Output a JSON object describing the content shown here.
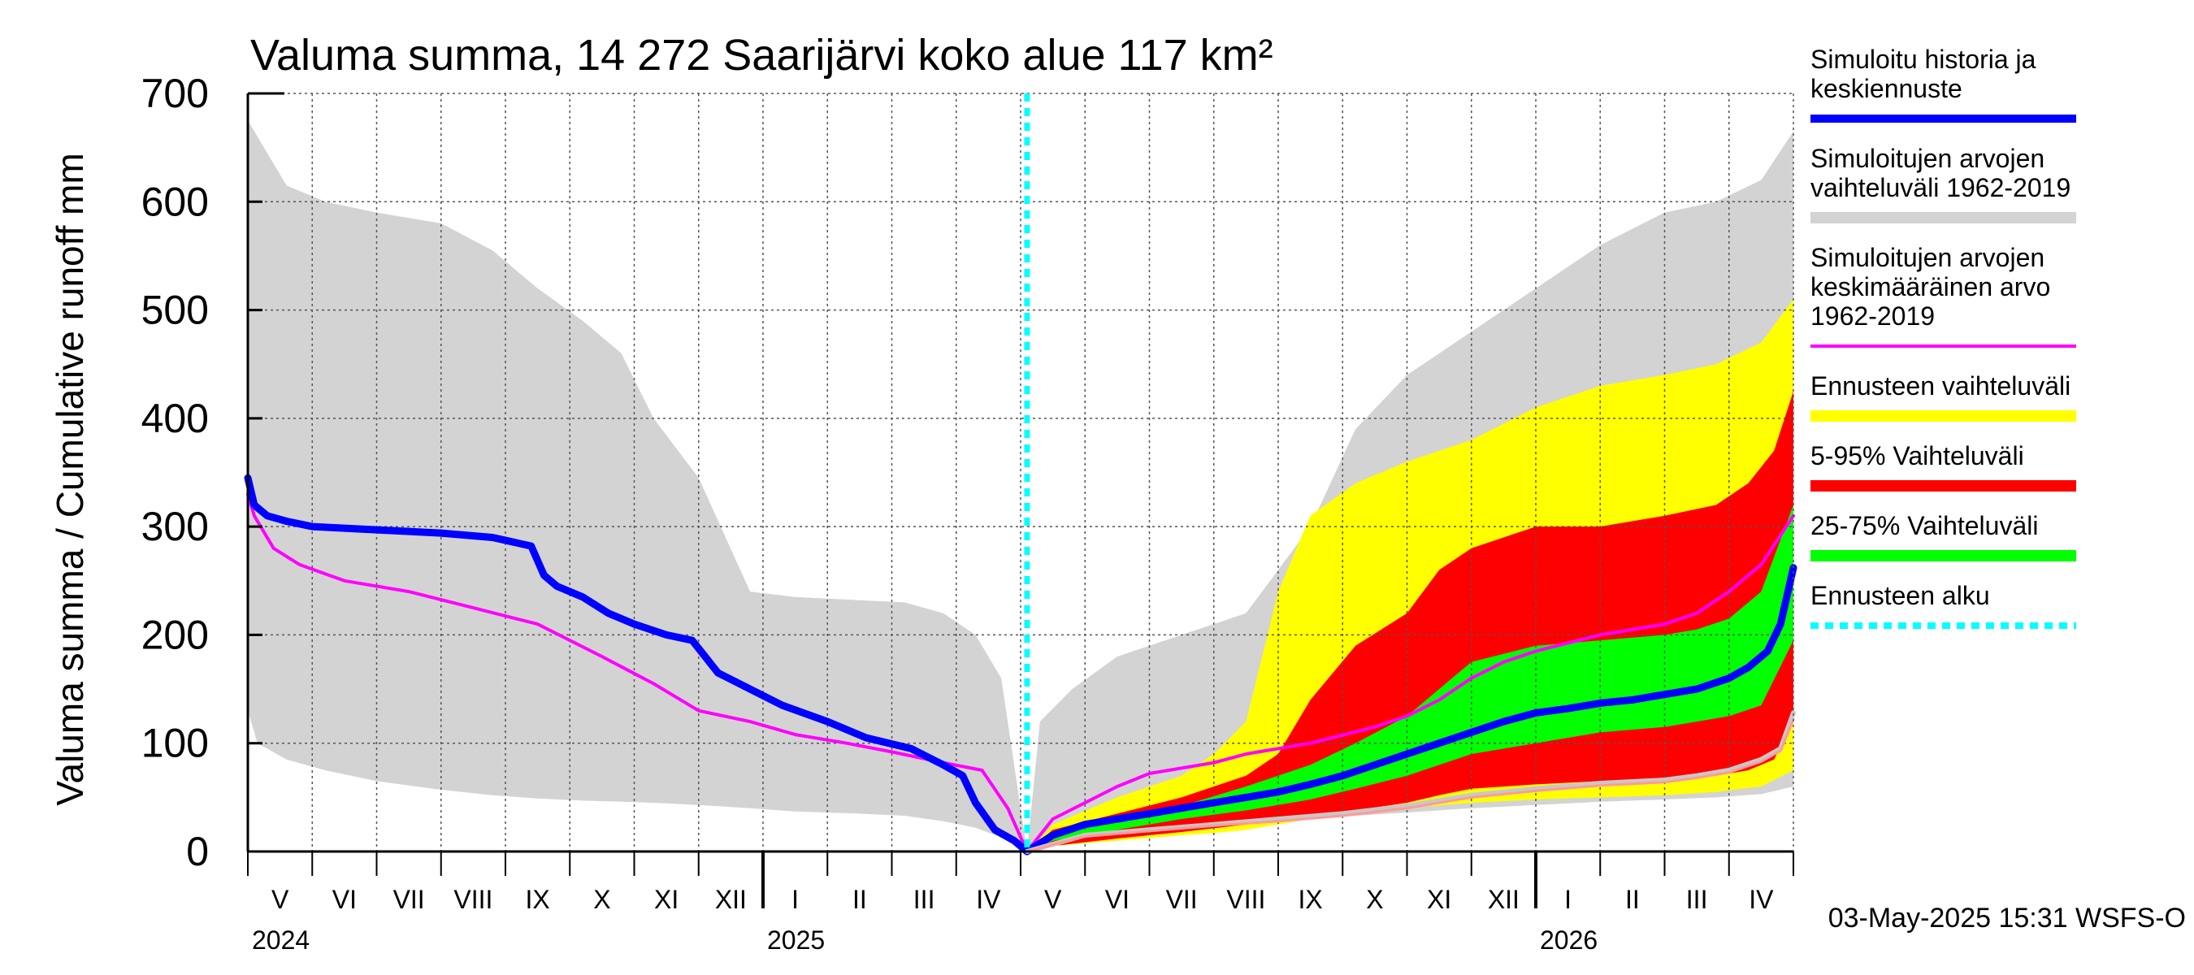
{
  "chart_data": {
    "type": "area",
    "title": "Valuma summa, 14 272 Saarijärvi koko alue 117 km²",
    "ylabel": "Valuma summa / Cumulative runoff    mm",
    "ylim": [
      0,
      700
    ],
    "yticks": [
      0,
      100,
      200,
      300,
      400,
      500,
      600,
      700
    ],
    "x_domain": [
      0,
      24
    ],
    "x_unit": "months since 2024-04-01",
    "grid": true,
    "month_labels": [
      {
        "label": "V",
        "x": 0.5
      },
      {
        "label": "VI",
        "x": 1.5
      },
      {
        "label": "VII",
        "x": 2.5
      },
      {
        "label": "VIII",
        "x": 3.5
      },
      {
        "label": "IX",
        "x": 4.5
      },
      {
        "label": "X",
        "x": 5.5
      },
      {
        "label": "XI",
        "x": 6.5
      },
      {
        "label": "XII",
        "x": 7.5
      },
      {
        "label": "I",
        "x": 8.5
      },
      {
        "label": "II",
        "x": 9.5
      },
      {
        "label": "III",
        "x": 10.5
      },
      {
        "label": "IV",
        "x": 11.5
      },
      {
        "label": "V",
        "x": 12.5
      },
      {
        "label": "VI",
        "x": 13.5
      },
      {
        "label": "VII",
        "x": 14.5
      },
      {
        "label": "VIII",
        "x": 15.5
      },
      {
        "label": "IX",
        "x": 16.5
      },
      {
        "label": "X",
        "x": 17.5
      },
      {
        "label": "XI",
        "x": 18.5
      },
      {
        "label": "XII",
        "x": 19.5
      },
      {
        "label": "I",
        "x": 20.5
      },
      {
        "label": "II",
        "x": 21.5
      },
      {
        "label": "III",
        "x": 22.5
      },
      {
        "label": "IV",
        "x": 23.5
      }
    ],
    "year_labels": [
      {
        "label": "2024",
        "x": 0
      },
      {
        "label": "2025",
        "x": 8
      },
      {
        "label": "2026",
        "x": 20
      }
    ],
    "year_ticks": [
      8,
      20
    ],
    "forecast_start_x": 12.1,
    "legend": [
      {
        "label": [
          "Simuloitu historia ja",
          "keskiennuste"
        ],
        "color": "#0000ff",
        "style": "line"
      },
      {
        "label": [
          "Simuloitujen arvojen",
          "vaihteluväli 1962-2019"
        ],
        "color": "#d3d3d3",
        "style": "band"
      },
      {
        "label": [
          "Simuloitujen arvojen",
          "keskimääräinen arvo",
          "   1962-2019"
        ],
        "color": "#ff00ff",
        "style": "thin"
      },
      {
        "label": [
          "Ennusteen vaihteluväli"
        ],
        "color": "#ffff00",
        "style": "band"
      },
      {
        "label": [
          "5-95% Vaihteluväli"
        ],
        "color": "#ff0000",
        "style": "band"
      },
      {
        "label": [
          "25-75% Vaihteluväli"
        ],
        "color": "#00ff00",
        "style": "band"
      },
      {
        "label": [
          "Ennusteen alku"
        ],
        "color": "#00ffff",
        "style": "dashed"
      }
    ],
    "timestamp": "03-May-2025 15:31 WSFS-O",
    "series": [
      {
        "name": "Simuloitujen arvojen vaihteluväli 1962-2019 (history)",
        "color": "#d3d3d3",
        "x": [
          0,
          0.15,
          0.6,
          1.2,
          2,
          3,
          3.8,
          4.5,
          5.2,
          5.8,
          6.3,
          7,
          7.8,
          8.5,
          9.5,
          10.2,
          10.8,
          11.3,
          11.7,
          12.1
        ],
        "upper": [
          675,
          660,
          615,
          600,
          590,
          580,
          555,
          520,
          490,
          460,
          400,
          345,
          240,
          235,
          232,
          230,
          220,
          200,
          160,
          0
        ],
        "lower": [
          130,
          100,
          85,
          75,
          65,
          57,
          52,
          49,
          47,
          46,
          45,
          43,
          40,
          37,
          35,
          33,
          28,
          22,
          13,
          0
        ]
      },
      {
        "name": "Simuloitujen arvojen vaihteluväli 1962-2019 (forecast year)",
        "color": "#d3d3d3",
        "x": [
          12.1,
          12.3,
          12.8,
          13.5,
          14.5,
          15.5,
          16.5,
          17.2,
          18,
          19,
          20,
          21,
          22,
          22.8,
          23.5,
          24
        ],
        "upper": [
          0,
          120,
          150,
          180,
          200,
          220,
          300,
          390,
          440,
          480,
          520,
          560,
          590,
          600,
          620,
          665
        ],
        "lower": [
          0,
          10,
          15,
          20,
          25,
          27,
          30,
          33,
          36,
          40,
          43,
          46,
          48,
          50,
          53,
          60
        ]
      },
      {
        "name": "Ennusteen vaihteluväli",
        "color": "#ffff00",
        "x": [
          12.1,
          12.5,
          13.5,
          14.5,
          15,
          15.5,
          16,
          16.5,
          17.2,
          18,
          19,
          20,
          21,
          22,
          22.8,
          23.5,
          24
        ],
        "upper": [
          0,
          25,
          50,
          70,
          90,
          120,
          240,
          310,
          340,
          360,
          380,
          410,
          430,
          440,
          450,
          470,
          510
        ],
        "lower": [
          0,
          5,
          10,
          15,
          17,
          20,
          25,
          30,
          35,
          40,
          45,
          48,
          50,
          52,
          55,
          60,
          75
        ]
      },
      {
        "name": "5-95% Vaihteluväli",
        "color": "#ff0000",
        "x": [
          12.1,
          12.5,
          13.5,
          14.5,
          15.5,
          16,
          16.5,
          17.2,
          18,
          18.5,
          19,
          20,
          21,
          22,
          22.8,
          23.3,
          23.7,
          24
        ],
        "upper": [
          0,
          20,
          35,
          50,
          70,
          90,
          140,
          190,
          220,
          260,
          280,
          300,
          300,
          310,
          320,
          340,
          370,
          425
        ],
        "lower": [
          0,
          5,
          12,
          18,
          25,
          28,
          32,
          38,
          45,
          52,
          58,
          62,
          65,
          67,
          70,
          75,
          85,
          120
        ]
      },
      {
        "name": "25-75% Vaihteluväli",
        "color": "#00ff00",
        "x": [
          12.1,
          12.5,
          13.5,
          14.5,
          15.5,
          16.5,
          17.2,
          18,
          18.5,
          19,
          20,
          21,
          22,
          22.5,
          23,
          23.5,
          24
        ],
        "upper": [
          0,
          15,
          30,
          42,
          60,
          80,
          100,
          125,
          150,
          175,
          190,
          195,
          200,
          205,
          215,
          240,
          320
        ],
        "lower": [
          0,
          10,
          20,
          30,
          38,
          48,
          58,
          70,
          80,
          90,
          100,
          110,
          115,
          120,
          125,
          135,
          195
        ]
      },
      {
        "name": "Simuloitujen arvojen keskimääräinen arvo 1962-2019",
        "color": "#ff00ff",
        "x": [
          0,
          0.1,
          0.4,
          0.8,
          1.5,
          2.5,
          3.5,
          4.5,
          5.5,
          6.3,
          7,
          7.8,
          8.5,
          9.3,
          10,
          10.8,
          11.4,
          11.8,
          12.1,
          12.5,
          13,
          13.5,
          14,
          15,
          15.5,
          16.5,
          17.5,
          18,
          18.5,
          19,
          19.5,
          20,
          21,
          22,
          22.5,
          23,
          23.5,
          24
        ],
        "values": [
          330,
          310,
          280,
          265,
          250,
          240,
          225,
          210,
          180,
          155,
          130,
          120,
          108,
          100,
          92,
          82,
          75,
          40,
          0,
          30,
          45,
          60,
          72,
          82,
          90,
          100,
          115,
          125,
          140,
          160,
          175,
          185,
          200,
          210,
          220,
          240,
          265,
          310
        ]
      },
      {
        "name": "Simuloitu historia ja keskiennuste",
        "color": "#0000ff",
        "x": [
          0,
          0.1,
          0.3,
          0.6,
          1,
          2,
          3,
          3.8,
          4.4,
          4.6,
          4.8,
          5.2,
          5.6,
          6,
          6.5,
          6.9,
          7.1,
          7.3,
          7.8,
          8.3,
          9,
          9.6,
          10.3,
          10.8,
          11.1,
          11.3,
          11.6,
          11.9,
          12.1,
          12.5,
          13,
          14,
          14.5,
          15,
          15.5,
          16,
          16.5,
          17,
          17.5,
          18,
          18.5,
          19,
          19.5,
          20,
          20.5,
          21,
          21.5,
          22,
          22.5,
          23,
          23.3,
          23.6,
          23.8,
          24
        ],
        "values": [
          345,
          320,
          310,
          305,
          300,
          297,
          294,
          290,
          282,
          255,
          245,
          235,
          220,
          210,
          200,
          195,
          180,
          165,
          150,
          135,
          120,
          105,
          95,
          80,
          70,
          45,
          20,
          10,
          0,
          15,
          25,
          35,
          40,
          45,
          50,
          55,
          62,
          70,
          80,
          90,
          100,
          110,
          120,
          128,
          132,
          137,
          140,
          145,
          150,
          160,
          170,
          185,
          210,
          262
        ]
      },
      {
        "name": "Forecast low scenario (grey)",
        "color": "#c8c8c8",
        "x": [
          12.1,
          13,
          14,
          15,
          16,
          17,
          18,
          19,
          20,
          21,
          22,
          22.5,
          23,
          23.5,
          23.8,
          24
        ],
        "values": [
          0,
          15,
          20,
          25,
          30,
          35,
          42,
          52,
          58,
          63,
          66,
          70,
          75,
          85,
          95,
          128
        ]
      },
      {
        "name": "Forecast low scenario (pink)",
        "color": "#ff9999",
        "x": [
          12.1,
          13,
          14,
          15,
          16,
          17,
          18,
          19,
          20,
          21,
          22,
          22.5,
          23,
          23.5,
          23.8,
          24
        ],
        "values": [
          0,
          14,
          19,
          24,
          28,
          33,
          40,
          50,
          56,
          61,
          64,
          68,
          73,
          83,
          93,
          122
        ]
      }
    ]
  }
}
